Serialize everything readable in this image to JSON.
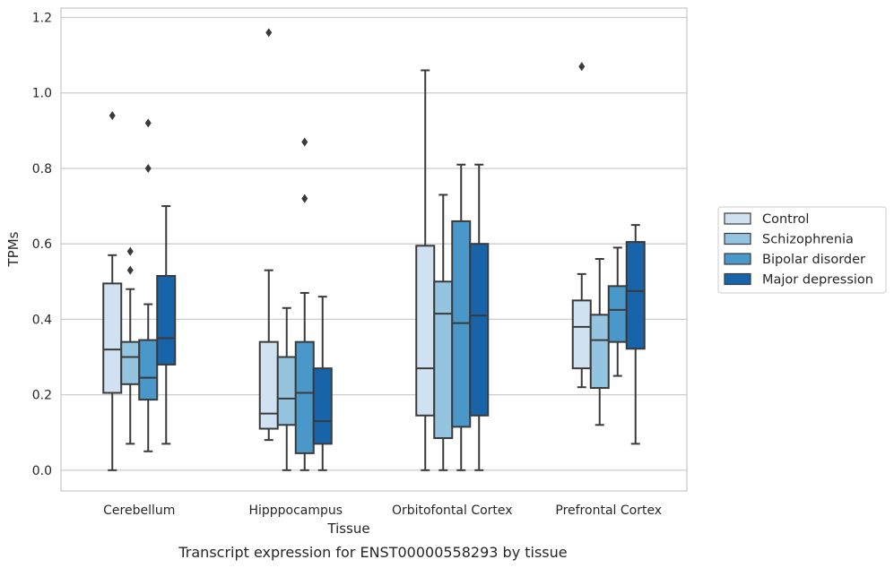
{
  "chart_data": {
    "type": "box",
    "xlabel": "Tissue",
    "ylabel": "TPMs",
    "caption": "Transcript expression for ENST00000558293 by tissue",
    "ylim": [
      -0.055,
      1.225
    ],
    "yticks": [
      "0.0",
      "0.2",
      "0.4",
      "0.6",
      "0.8",
      "1.0",
      "1.2"
    ],
    "grid": "horizontal",
    "legend_position": "right",
    "categories": [
      "Cerebellum",
      "Hipppocampus",
      "Orbitofontal Cortex",
      "Prefrontal Cortex"
    ],
    "series": [
      {
        "name": "Control",
        "color": "#d0e1f2",
        "boxes": [
          {
            "whisker_low": 0.0,
            "q1": 0.205,
            "median": 0.32,
            "q3": 0.495,
            "whisker_high": 0.57,
            "outliers": [
              0.94
            ]
          },
          {
            "whisker_low": 0.08,
            "q1": 0.11,
            "median": 0.15,
            "q3": 0.34,
            "whisker_high": 0.53,
            "outliers": [
              1.16
            ]
          },
          {
            "whisker_low": 0.0,
            "q1": 0.145,
            "median": 0.27,
            "q3": 0.595,
            "whisker_high": 1.06,
            "outliers": []
          },
          {
            "whisker_low": 0.22,
            "q1": 0.27,
            "median": 0.38,
            "q3": 0.45,
            "whisker_high": 0.52,
            "outliers": [
              1.07
            ]
          }
        ]
      },
      {
        "name": "Schizophrenia",
        "color": "#94c4df",
        "boxes": [
          {
            "whisker_low": 0.07,
            "q1": 0.228,
            "median": 0.3,
            "q3": 0.34,
            "whisker_high": 0.48,
            "outliers": [
              0.53,
              0.58
            ]
          },
          {
            "whisker_low": 0.0,
            "q1": 0.12,
            "median": 0.19,
            "q3": 0.3,
            "whisker_high": 0.43,
            "outliers": []
          },
          {
            "whisker_low": 0.0,
            "q1": 0.085,
            "median": 0.415,
            "q3": 0.5,
            "whisker_high": 0.73,
            "outliers": []
          },
          {
            "whisker_low": 0.12,
            "q1": 0.218,
            "median": 0.345,
            "q3": 0.412,
            "whisker_high": 0.56,
            "outliers": []
          }
        ]
      },
      {
        "name": "Bipolar disorder",
        "color": "#4a98c9",
        "boxes": [
          {
            "whisker_low": 0.05,
            "q1": 0.187,
            "median": 0.245,
            "q3": 0.345,
            "whisker_high": 0.44,
            "outliers": [
              0.8,
              0.92
            ]
          },
          {
            "whisker_low": 0.0,
            "q1": 0.045,
            "median": 0.205,
            "q3": 0.34,
            "whisker_high": 0.47,
            "outliers": [
              0.72,
              0.87
            ]
          },
          {
            "whisker_low": 0.0,
            "q1": 0.115,
            "median": 0.39,
            "q3": 0.66,
            "whisker_high": 0.81,
            "outliers": []
          },
          {
            "whisker_low": 0.25,
            "q1": 0.34,
            "median": 0.425,
            "q3": 0.488,
            "whisker_high": 0.59,
            "outliers": []
          }
        ]
      },
      {
        "name": "Major depression",
        "color": "#1764ab",
        "boxes": [
          {
            "whisker_low": 0.07,
            "q1": 0.28,
            "median": 0.35,
            "q3": 0.515,
            "whisker_high": 0.7,
            "outliers": []
          },
          {
            "whisker_low": 0.0,
            "q1": 0.07,
            "median": 0.13,
            "q3": 0.27,
            "whisker_high": 0.46,
            "outliers": []
          },
          {
            "whisker_low": 0.0,
            "q1": 0.145,
            "median": 0.41,
            "q3": 0.6,
            "whisker_high": 0.81,
            "outliers": []
          },
          {
            "whisker_low": 0.07,
            "q1": 0.322,
            "median": 0.475,
            "q3": 0.605,
            "whisker_high": 0.65,
            "outliers": []
          }
        ]
      }
    ]
  }
}
